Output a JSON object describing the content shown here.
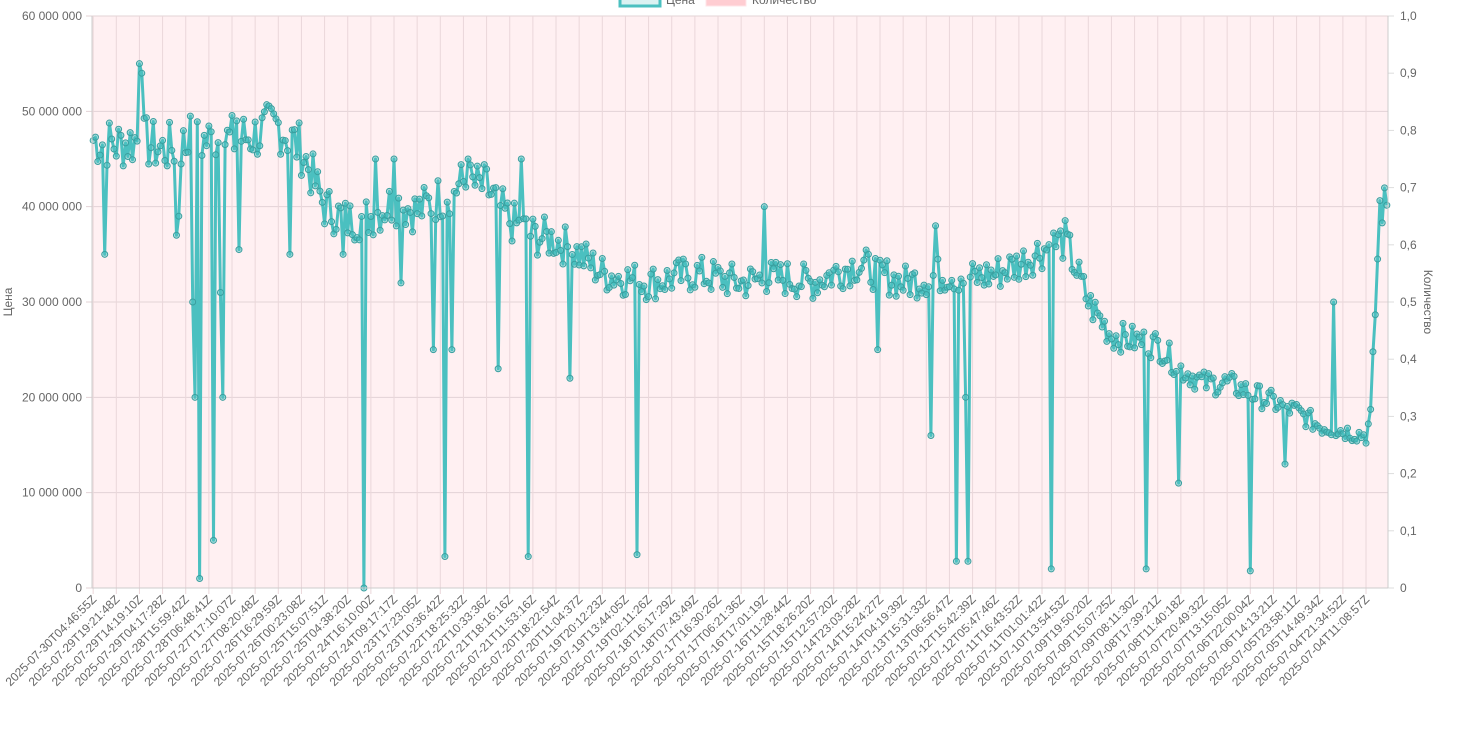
{
  "chart_data": {
    "type": "line",
    "legend": {
      "placement": "top-center",
      "items": [
        {
          "label": "Цена",
          "color": "#4bc0c0"
        },
        {
          "label": "Количество",
          "color": "#ffcdd2"
        }
      ]
    },
    "y_left": {
      "label": "Цена",
      "range": [
        0,
        60000000
      ],
      "tick_labels": [
        "0",
        "10 000 000",
        "20 000 000",
        "30 000 000",
        "40 000 000",
        "50 000 000",
        "60 000 000"
      ]
    },
    "y_right": {
      "label": "Количество",
      "range": [
        0,
        1
      ],
      "tick_labels": [
        "0",
        "0,1",
        "0,2",
        "0,3",
        "0,4",
        "0,5",
        "0,6",
        "0,7",
        "0,8",
        "0,9",
        "1,0"
      ]
    },
    "x_tick_labels": [
      "2025-07-30T04:46:55Z",
      "2025-07-29T19:21:48Z",
      "2025-07-29T14:19:10Z",
      "2025-07-29T04:17:28Z",
      "2025-07-28T15:59:42Z",
      "2025-07-28T06:48:41Z",
      "2025-07-27T17:10:07Z",
      "2025-07-27T08:20:48Z",
      "2025-07-26T16:29:59Z",
      "2025-07-26T00:23:08Z",
      "2025-07-25T15:07:51Z",
      "2025-07-25T04:38:20Z",
      "2025-07-24T16:10:00Z",
      "2025-07-24T09:17:17Z",
      "2025-07-23T17:23:05Z",
      "2025-07-23T10:36:42Z",
      "2025-07-22T18:25:32Z",
      "2025-07-22T10:33:36Z",
      "2025-07-21T18:16:16Z",
      "2025-07-21T11:53:16Z",
      "2025-07-20T18:22:54Z",
      "2025-07-20T11:04:37Z",
      "2025-07-19T20:12:23Z",
      "2025-07-19T13:44:05Z",
      "2025-07-19T02:11:26Z",
      "2025-07-18T16:17:29Z",
      "2025-07-18T07:43:49Z",
      "2025-07-17T16:30:26Z",
      "2025-07-17T06:21:36Z",
      "2025-07-16T17:01:19Z",
      "2025-07-16T11:28:44Z",
      "2025-07-15T18:26:20Z",
      "2025-07-15T12:57:20Z",
      "2025-07-14T23:03:28Z",
      "2025-07-14T15:24:27Z",
      "2025-07-14T04:19:39Z",
      "2025-07-13T15:31:33Z",
      "2025-07-13T06:56:47Z",
      "2025-07-12T15:42:39Z",
      "2025-07-12T05:47:46Z",
      "2025-07-11T16:43:52Z",
      "2025-07-11T01:01:42Z",
      "2025-07-10T13:54:53Z",
      "2025-07-09T19:50:20Z",
      "2025-07-09T15:07:25Z",
      "2025-07-09T08:11:30Z",
      "2025-07-08T17:39:21Z",
      "2025-07-08T11:40:18Z",
      "2025-07-07T20:49:32Z",
      "2025-07-07T13:15:05Z",
      "2025-07-06T22:00:04Z",
      "2025-07-06T14:13:21Z",
      "2025-07-05T23:58:11Z",
      "2025-07-05T14:49:34Z",
      "2025-07-04T21:34:52Z",
      "2025-07-04T11:08:57Z"
    ],
    "series": [
      {
        "name": "Цена",
        "axis": "left",
        "color": "#4bc0c0",
        "point_spacing_per_label": 10,
        "price_profile": [
          [
            0,
            47000000
          ],
          [
            10,
            46500000
          ],
          [
            20,
            47000000
          ],
          [
            30,
            46000000
          ],
          [
            40,
            46500000
          ],
          [
            50,
            47000000
          ],
          [
            60,
            47000000
          ],
          [
            70,
            47500000
          ],
          [
            80,
            48500000
          ],
          [
            90,
            46000000
          ],
          [
            100,
            40000000
          ],
          [
            110,
            38500000
          ],
          [
            120,
            39000000
          ],
          [
            130,
            40500000
          ],
          [
            140,
            39500000
          ],
          [
            150,
            41000000
          ],
          [
            160,
            42500000
          ],
          [
            170,
            42000000
          ],
          [
            180,
            38500000
          ],
          [
            190,
            37000000
          ],
          [
            200,
            36500000
          ],
          [
            210,
            35000000
          ],
          [
            220,
            33000000
          ],
          [
            230,
            32500000
          ],
          [
            240,
            32000000
          ],
          [
            250,
            32500000
          ],
          [
            260,
            33000000
          ],
          [
            270,
            32500000
          ],
          [
            280,
            32000000
          ],
          [
            290,
            32500000
          ],
          [
            300,
            32500000
          ],
          [
            310,
            32000000
          ],
          [
            320,
            33000000
          ],
          [
            330,
            34000000
          ],
          [
            340,
            33000000
          ],
          [
            350,
            32000000
          ],
          [
            360,
            32500000
          ],
          [
            370,
            33000000
          ],
          [
            380,
            32500000
          ],
          [
            390,
            33000000
          ],
          [
            400,
            34000000
          ],
          [
            410,
            35500000
          ],
          [
            420,
            36500000
          ],
          [
            430,
            30000000
          ],
          [
            440,
            26500000
          ],
          [
            450,
            26000000
          ],
          [
            460,
            25500000
          ],
          [
            470,
            23000000
          ],
          [
            480,
            21500000
          ],
          [
            490,
            21500000
          ],
          [
            500,
            20500000
          ],
          [
            510,
            19500000
          ],
          [
            520,
            18500000
          ],
          [
            530,
            17000000
          ],
          [
            540,
            16500000
          ],
          [
            550,
            16000000
          ],
          [
            552,
            18000000
          ],
          [
            556,
            40000000
          ]
        ],
        "dips": [
          [
            5,
            35000000
          ],
          [
            36,
            37000000
          ],
          [
            37,
            39000000
          ],
          [
            43,
            30000000
          ],
          [
            44,
            20000000
          ],
          [
            46,
            1000000
          ],
          [
            52,
            5000000
          ],
          [
            55,
            31000000
          ],
          [
            56,
            20000000
          ],
          [
            63,
            35500000
          ],
          [
            85,
            35000000
          ],
          [
            108,
            35000000
          ],
          [
            117,
            0
          ],
          [
            122,
            45000000
          ],
          [
            133,
            32000000
          ],
          [
            147,
            25000000
          ],
          [
            152,
            3300000
          ],
          [
            155,
            25000000
          ],
          [
            175,
            23000000
          ],
          [
            188,
            3300000
          ],
          [
            206,
            22000000
          ],
          [
            235,
            3500000
          ],
          [
            290,
            40000000
          ],
          [
            339,
            25000000
          ],
          [
            362,
            16000000
          ],
          [
            364,
            38000000
          ],
          [
            373,
            2800000
          ],
          [
            378,
            2800000
          ],
          [
            377,
            20000000
          ],
          [
            414,
            2000000
          ],
          [
            455,
            2000000
          ],
          [
            469,
            11000000
          ],
          [
            500,
            1800000
          ],
          [
            515,
            13000000
          ],
          [
            536,
            30000000
          ]
        ],
        "peaks": [
          [
            20,
            55000000
          ],
          [
            21,
            54000000
          ],
          [
            42,
            49500000
          ],
          [
            62,
            49000000
          ],
          [
            162,
            45000000
          ],
          [
            130,
            45000000
          ],
          [
            185,
            45000000
          ]
        ]
      }
    ],
    "grid": true
  }
}
